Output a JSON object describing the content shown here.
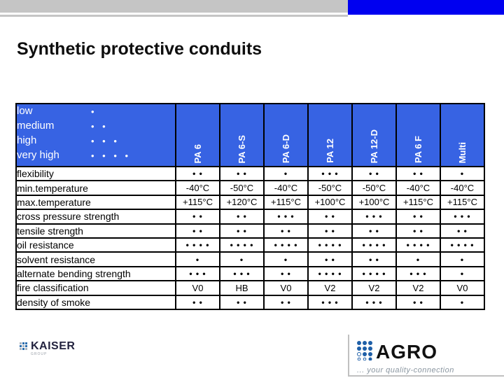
{
  "slide": {
    "title": "Synthetic protective conduits"
  },
  "colors": {
    "top_bar_gray": "#c5c5c5",
    "top_bar_blue": "#0000f0",
    "table_header_blue": "#3763e3",
    "border_black": "#000000",
    "kaiser_navy": "#23233f",
    "logo_blue": "#1e5fa8",
    "tagline_gray": "#8a96a0"
  },
  "legend": {
    "items": [
      {
        "label": "low",
        "dots": "•"
      },
      {
        "label": "medium",
        "dots": "• •"
      },
      {
        "label": "high",
        "dots": "• • •"
      },
      {
        "label": "very high",
        "dots": "• • • •"
      }
    ]
  },
  "table": {
    "columns": [
      "PA 6",
      "PA 6-S",
      "PA 6-D",
      "PA 12",
      "PA 12-D",
      "PA 6 F",
      "Multi"
    ],
    "rows": [
      {
        "label": "flexibility",
        "values": [
          "• •",
          "• •",
          "•",
          "• • •",
          "• •",
          "• •",
          "•"
        ]
      },
      {
        "label": "min.temperature",
        "values": [
          "-40°C",
          "-50°C",
          "-40°C",
          "-50°C",
          "-50°C",
          "-40°C",
          "-40°C"
        ]
      },
      {
        "label": "max.temperature",
        "values": [
          "+115°C",
          "+120°C",
          "+115°C",
          "+100°C",
          "+100°C",
          "+115°C",
          "+115°C"
        ]
      },
      {
        "label": "cross pressure strength",
        "values": [
          "• •",
          "• •",
          "• • •",
          "• •",
          "• • •",
          "• •",
          "• • •"
        ]
      },
      {
        "label": "tensile strength",
        "values": [
          "• •",
          "• •",
          "• •",
          "• •",
          "• •",
          "• •",
          "• •"
        ]
      },
      {
        "label": "oil resistance",
        "values": [
          "• • • •",
          "• • • •",
          "• • • •",
          "• • • •",
          "• • • •",
          "• • • •",
          "• • • •"
        ]
      },
      {
        "label": "solvent resistance",
        "values": [
          "•",
          "•",
          "•",
          "• •",
          "• •",
          "•",
          "•"
        ]
      },
      {
        "label": "alternate bending strength",
        "values": [
          "• • •",
          "• • •",
          "• •",
          "• • • •",
          "• • • •",
          "• • •",
          "•"
        ]
      },
      {
        "label": "fire classification",
        "values": [
          "V0",
          "HB",
          "V0",
          "V2",
          "V2",
          "V2",
          "V0"
        ]
      },
      {
        "label": "density of smoke",
        "values": [
          "• •",
          "• •",
          "• •",
          "• • •",
          "• • •",
          "• •",
          "•"
        ]
      }
    ]
  },
  "footer": {
    "kaiser_name": "KAISER",
    "kaiser_sub": "GROUP",
    "agro_name": "AGRO",
    "agro_tagline": "... your quality-connection"
  }
}
